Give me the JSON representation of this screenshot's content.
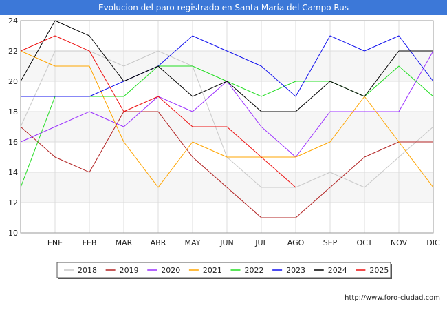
{
  "title": "Evolucion del paro registrado en Santa María del Campo Rus",
  "credit": "http://www.foro-ciudad.com",
  "chart_data": {
    "type": "line",
    "title": "Evolucion del paro registrado en Santa María del Campo Rus",
    "xlabel": "",
    "ylabel": "",
    "categories": [
      "",
      "ENE",
      "FEB",
      "MAR",
      "ABR",
      "MAY",
      "JUN",
      "JUL",
      "AGO",
      "SEP",
      "OCT",
      "NOV",
      "DIC"
    ],
    "ylim": [
      10,
      24
    ],
    "yticks": [
      10,
      12,
      14,
      16,
      18,
      20,
      22,
      24
    ],
    "grid": true,
    "legend_position": "bottom",
    "series": [
      {
        "name": "2018",
        "color": "#c8c8c8",
        "values": [
          17,
          22,
          22,
          21,
          22,
          21,
          15,
          13,
          13,
          14,
          13,
          15,
          17
        ]
      },
      {
        "name": "2019",
        "color": "#b22222",
        "values": [
          17,
          15,
          14,
          18,
          18,
          15,
          13,
          11,
          11,
          13,
          15,
          16,
          16
        ]
      },
      {
        "name": "2020",
        "color": "#9b30ff",
        "values": [
          16,
          17,
          18,
          17,
          19,
          18,
          20,
          17,
          15,
          18,
          18,
          18,
          22
        ]
      },
      {
        "name": "2021",
        "color": "#ffa500",
        "values": [
          22,
          21,
          21,
          16,
          13,
          16,
          15,
          15,
          15,
          16,
          19,
          16,
          13
        ]
      },
      {
        "name": "2022",
        "color": "#22dd22",
        "values": [
          13,
          19,
          19,
          19,
          21,
          21,
          20,
          19,
          20,
          20,
          19,
          21,
          19
        ]
      },
      {
        "name": "2023",
        "color": "#1010ee",
        "values": [
          19,
          19,
          19,
          20,
          21,
          23,
          22,
          21,
          19,
          23,
          22,
          23,
          20
        ]
      },
      {
        "name": "2024",
        "color": "#000000",
        "values": [
          20,
          24,
          23,
          20,
          21,
          19,
          20,
          18,
          18,
          20,
          19,
          22,
          22
        ]
      },
      {
        "name": "2025",
        "color": "#ee1111",
        "values": [
          22,
          23,
          22,
          18,
          19,
          17,
          17,
          15,
          13,
          null,
          null,
          null,
          null
        ]
      }
    ]
  }
}
